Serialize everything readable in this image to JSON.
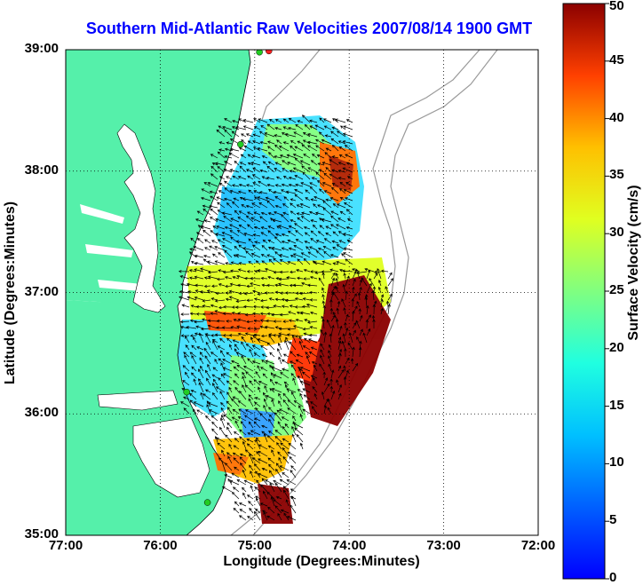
{
  "title": "Southern Mid-Atlantic Raw Velocities 2007/08/14 1900 GMT",
  "x_axis": {
    "label": "Longitude (Degrees:Minutes)",
    "ticks": [
      "77:00",
      "76:00",
      "75:00",
      "74:00",
      "73:00",
      "72:00"
    ]
  },
  "y_axis": {
    "label": "Latitude (Degrees:Minutes)",
    "ticks": [
      "39:00",
      "38:00",
      "37:00",
      "36:00",
      "35:00"
    ]
  },
  "colorbar": {
    "label": "Surface Velocity (cm/s)",
    "ticks": [
      "0",
      "5",
      "10",
      "15",
      "20",
      "25",
      "30",
      "35",
      "40",
      "45",
      "50"
    ],
    "range": [
      0,
      50
    ],
    "colormap": "jet"
  },
  "map_data": {
    "lon_range": [
      -77.0,
      -72.0
    ],
    "lat_range": [
      35.0,
      39.0
    ],
    "grid": "dotted",
    "land_color": "#55f0aa",
    "stations": [
      {
        "lon": -74.85,
        "lat": 38.99,
        "color": "#ff2020"
      },
      {
        "lon": -74.95,
        "lat": 38.98,
        "color": "#22cc22"
      },
      {
        "lon": -75.15,
        "lat": 38.22,
        "color": "#22cc22"
      },
      {
        "lon": -75.72,
        "lat": 36.18,
        "color": "#22cc22"
      },
      {
        "lon": -75.5,
        "lat": 35.27,
        "color": "#22cc22"
      }
    ]
  }
}
